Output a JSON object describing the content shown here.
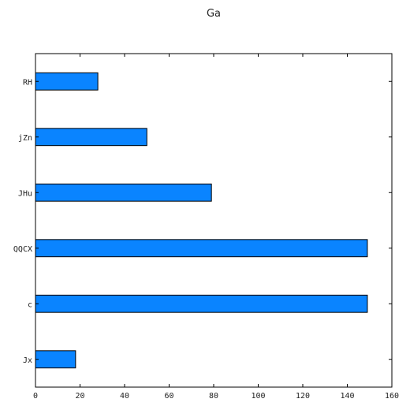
{
  "chart_data": {
    "type": "bar",
    "orientation": "horizontal",
    "title": "Ga",
    "xlabel": "",
    "ylabel": "",
    "categories": [
      "Jx",
      "c",
      "QQCX",
      "JHu",
      "jZn",
      "RH"
    ],
    "values": [
      18,
      149,
      149,
      79,
      50,
      28
    ],
    "xlim": [
      0,
      160
    ],
    "xticks": [
      0,
      20,
      40,
      60,
      80,
      100,
      120,
      140,
      160
    ],
    "grid": false,
    "legend": "none",
    "bar_color": "#0a84ff",
    "bar_edge_color": "#000000"
  }
}
